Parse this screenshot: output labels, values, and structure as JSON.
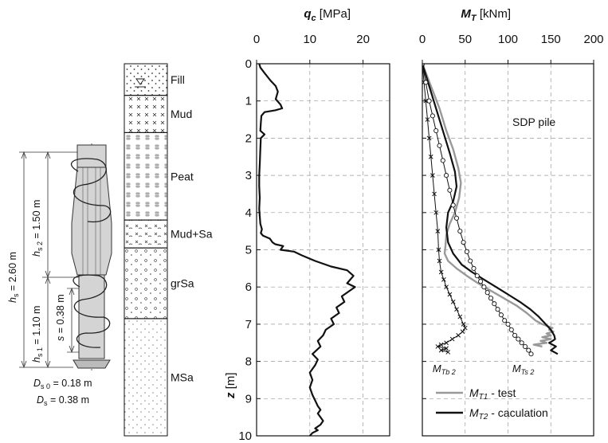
{
  "pile": {
    "hs_label": "h",
    "hs_sub": "s",
    "hs_value": " = 2.60 m",
    "hs2_label": "h",
    "hs2_sub": "s 2",
    "hs2_value": " = 1.50 m",
    "hs1_label": "h",
    "hs1_sub": "s 1",
    "hs1_value": " = 1.10 m",
    "s_label": "s",
    "s_value": " = 0.38 m",
    "ds0_label": "D",
    "ds0_sub": "s 0",
    "ds0_value": " = 0.18 m",
    "ds_label": "D",
    "ds_sub": "s",
    "ds_value": " = 0.38 m"
  },
  "soil_column": {
    "layers": [
      {
        "name": "Fill",
        "top": 0,
        "bottom": 0.85
      },
      {
        "name": "Mud",
        "top": 0.85,
        "bottom": 1.85
      },
      {
        "name": "Peat",
        "top": 1.85,
        "bottom": 4.2
      },
      {
        "name": "Mud+Sa",
        "top": 4.2,
        "bottom": 4.95
      },
      {
        "name": "grSa",
        "top": 4.95,
        "bottom": 6.85
      },
      {
        "name": "MSa",
        "top": 6.85,
        "bottom": 10
      }
    ]
  },
  "chart_data": [
    {
      "type": "line",
      "title_symbol": "q",
      "title_sub": "c",
      "title_unit": " [MPa]",
      "xlim": [
        0,
        25
      ],
      "xticks": [
        0,
        10,
        20
      ],
      "ylim": [
        0,
        10
      ],
      "yticks": [
        0,
        1,
        2,
        3,
        4,
        5,
        6,
        7,
        8,
        9,
        10
      ],
      "ylabel": "z",
      "ylabel_unit": " [m]",
      "grid": true,
      "series": [
        {
          "color": "#111111",
          "x": [
            0.5,
            0.7,
            1.5,
            2.6,
            3.6,
            4.0,
            3.6,
            4.5,
            4.8,
            3.5,
            1.5,
            0.9,
            0.8,
            0.7,
            1.5,
            0.8,
            0.7,
            0.6,
            0.5,
            0.5,
            0.6,
            0.5,
            0.6,
            0.7,
            1.0,
            0.8,
            1.2,
            2.5,
            3.0,
            3.5,
            5.0,
            4.5,
            7.0,
            8.5,
            11.0,
            14.0,
            17.0,
            18.2,
            17.0,
            18.5,
            17.5,
            16.0,
            16.5,
            15.0,
            15.5,
            14.0,
            14.5,
            13.0,
            12.5,
            11.5,
            12.0,
            10.5,
            11.5,
            11.0,
            10.0,
            10.5,
            10.0,
            10.5,
            11.0,
            11.5,
            12.0,
            11.5,
            12.0,
            12.5,
            12.0,
            11.0,
            11.5,
            10.5,
            10.0
          ],
          "y": [
            0.0,
            0.1,
            0.25,
            0.45,
            0.6,
            0.75,
            0.95,
            1.1,
            1.2,
            1.25,
            1.3,
            1.4,
            1.6,
            1.8,
            1.9,
            2.0,
            2.3,
            2.7,
            3.0,
            3.3,
            3.6,
            3.9,
            4.1,
            4.3,
            4.45,
            4.55,
            4.62,
            4.7,
            4.8,
            4.85,
            4.9,
            5.0,
            5.05,
            5.15,
            5.3,
            5.45,
            5.55,
            5.7,
            5.9,
            6.0,
            6.1,
            6.25,
            6.4,
            6.55,
            6.7,
            6.85,
            7.0,
            7.15,
            7.3,
            7.45,
            7.6,
            7.8,
            7.95,
            8.1,
            8.3,
            8.5,
            8.7,
            8.9,
            9.05,
            9.2,
            9.3,
            9.4,
            9.5,
            9.6,
            9.7,
            9.8,
            9.85,
            9.92,
            10.0
          ]
        }
      ]
    },
    {
      "type": "line",
      "title_symbol": "M",
      "title_sub": "T",
      "title_unit": " [kNm]",
      "xlim": [
        0,
        200
      ],
      "xticks": [
        0,
        50,
        100,
        150,
        200
      ],
      "ylim": [
        0,
        10
      ],
      "grid": true,
      "annotation": "SDP pile",
      "point_labels": [
        {
          "symbol": "M",
          "sub": "Tb 2",
          "x": 12,
          "y": 8.18
        },
        {
          "symbol": "M",
          "sub": "Ts 2",
          "x": 105,
          "y": 8.18
        }
      ],
      "legend_position": "bottom-right",
      "legend": [
        {
          "symbol": "M",
          "sub": "T1",
          "text": " - test",
          "color": "#999999"
        },
        {
          "symbol": "M",
          "sub": "T2",
          "text": " - caculation",
          "color": "#111111"
        }
      ],
      "series": [
        {
          "name_symbol": "M",
          "name_sub": "T1",
          "name_text": " - test",
          "color": "#999999",
          "style": "line",
          "x": [
            0,
            10,
            20,
            28,
            36,
            42,
            45,
            43,
            38,
            32,
            28,
            27,
            26,
            30,
            40,
            52,
            65,
            80,
            95,
            110,
            122,
            132,
            140,
            146,
            152,
            148,
            153,
            145,
            150,
            140,
            150,
            138,
            145,
            130,
            140
          ],
          "y": [
            0,
            0.6,
            1.2,
            1.8,
            2.3,
            2.8,
            3.2,
            3.6,
            4.0,
            4.3,
            4.6,
            4.9,
            5.1,
            5.3,
            5.5,
            5.7,
            5.9,
            6.1,
            6.3,
            6.5,
            6.7,
            6.9,
            7.0,
            7.05,
            7.1,
            7.15,
            7.2,
            7.25,
            7.3,
            7.35,
            7.4,
            7.45,
            7.5,
            7.55,
            7.6
          ]
        },
        {
          "name_symbol": "M",
          "name_sub": "T2",
          "name_text": " - caculation",
          "color": "#111111",
          "style": "line",
          "x": [
            0,
            8,
            16,
            24,
            32,
            38,
            40,
            36,
            30,
            28,
            30,
            36,
            46,
            58,
            72,
            86,
            100,
            114,
            126,
            136,
            144,
            150,
            154,
            155,
            152,
            148,
            156,
            150,
            158
          ],
          "y": [
            0,
            0.6,
            1.2,
            1.8,
            2.4,
            2.9,
            3.3,
            3.7,
            4.0,
            4.4,
            4.8,
            5.1,
            5.4,
            5.6,
            5.8,
            6.0,
            6.2,
            6.4,
            6.6,
            6.8,
            7.0,
            7.15,
            7.3,
            7.4,
            7.45,
            7.5,
            7.6,
            7.7,
            7.8
          ]
        },
        {
          "name_symbol": "M",
          "name_sub": "Tb 2",
          "color": "#111111",
          "style": "crosses",
          "x": [
            0,
            2,
            4,
            6,
            8,
            10,
            12,
            14,
            16,
            18,
            19,
            20,
            22,
            25,
            28,
            32,
            36,
            40,
            44,
            48,
            50,
            47,
            42,
            35,
            28,
            22,
            18,
            28,
            22,
            30
          ],
          "y": [
            0,
            0.5,
            1.0,
            1.5,
            2.0,
            2.5,
            3.0,
            3.5,
            4.0,
            4.5,
            5.0,
            5.3,
            5.6,
            5.8,
            6.0,
            6.2,
            6.4,
            6.6,
            6.8,
            7.0,
            7.1,
            7.2,
            7.3,
            7.4,
            7.5,
            7.55,
            7.6,
            7.65,
            7.7,
            7.75
          ]
        },
        {
          "name_symbol": "M",
          "name_sub": "Ts 2",
          "color": "#111111",
          "style": "circles",
          "x": [
            0,
            4,
            8,
            12,
            16,
            20,
            24,
            28,
            32,
            36,
            40,
            44,
            48,
            52,
            56,
            60,
            64,
            68,
            72,
            76,
            80,
            84,
            88,
            92,
            96,
            100,
            104,
            108,
            112,
            116,
            120,
            124,
            127
          ],
          "y": [
            0,
            0.5,
            1.0,
            1.4,
            1.8,
            2.2,
            2.6,
            3.0,
            3.4,
            3.8,
            4.15,
            4.5,
            4.8,
            5.05,
            5.3,
            5.5,
            5.7,
            5.85,
            6.0,
            6.15,
            6.3,
            6.45,
            6.6,
            6.75,
            6.9,
            7.0,
            7.15,
            7.3,
            7.4,
            7.5,
            7.6,
            7.7,
            7.8
          ]
        }
      ]
    }
  ]
}
